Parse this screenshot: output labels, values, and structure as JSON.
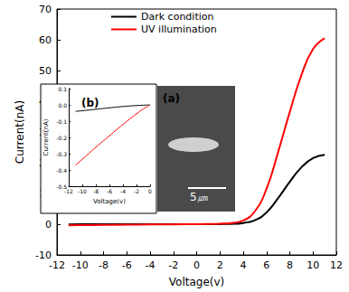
{
  "chart_data": [
    {
      "type": "line",
      "xlabel": "Voltage(v)",
      "ylabel": "Current(nA)",
      "x": [
        -11,
        -10,
        -8,
        -6,
        -4,
        -2,
        0,
        1,
        2,
        3,
        4,
        5,
        6,
        7,
        8,
        9,
        10,
        11
      ],
      "series": [
        {
          "name": "Dark condition",
          "color": "#000000",
          "values": [
            -0.04,
            -0.035,
            -0.025,
            -0.015,
            -0.008,
            -0.003,
            0,
            0.01,
            0.03,
            0.1,
            0.4,
            1.3,
            3.8,
            8.5,
            13.8,
            18.5,
            21.5,
            22.6
          ]
        },
        {
          "name": "UV illumination",
          "color": "#ff0000",
          "values": [
            -0.37,
            -0.33,
            -0.25,
            -0.18,
            -0.11,
            -0.05,
            0,
            0.05,
            0.15,
            0.4,
            1.2,
            4.2,
            11.5,
            23.5,
            36.5,
            48.5,
            57,
            60.5
          ]
        }
      ],
      "xlim": [
        -12,
        12
      ],
      "xticks": [
        -12,
        -10,
        -8,
        -6,
        -4,
        -2,
        0,
        2,
        4,
        6,
        8,
        10,
        12
      ],
      "ylim": [
        -10,
        70
      ],
      "yticks": [
        -10,
        0,
        10,
        20,
        30,
        40,
        50,
        60,
        70
      ],
      "legend": "upper left"
    },
    {
      "type": "line",
      "title": "(b)",
      "xlabel": "Voltage(v)",
      "ylabel": "Current(nA)",
      "x": [
        -11,
        -10,
        -8,
        -6,
        -4,
        -2,
        -1,
        0
      ],
      "series": [
        {
          "color": "#000000",
          "values": [
            -0.04,
            -0.036,
            -0.027,
            -0.018,
            -0.01,
            -0.004,
            -0.002,
            0
          ]
        },
        {
          "color": "#ff0000",
          "values": [
            -0.37,
            -0.335,
            -0.26,
            -0.19,
            -0.12,
            -0.055,
            -0.025,
            0
          ]
        }
      ],
      "xlim": [
        -12,
        0
      ],
      "xticks": [
        -12,
        -10,
        -8,
        -6,
        -4,
        -2,
        0
      ],
      "ylim": [
        -0.5,
        0.1
      ],
      "yticks": [
        {
          "value": 0.1,
          "label": "0.1"
        },
        {
          "value": 0,
          "label": "0.0"
        },
        {
          "value": -0.1,
          "label": "-0.1"
        },
        {
          "value": -0.2,
          "label": "-0.2"
        },
        {
          "value": -0.3,
          "label": "-0.3"
        },
        {
          "value": -0.4,
          "label": "-0.4"
        },
        {
          "value": -0.5,
          "label": "-0.5"
        }
      ]
    }
  ],
  "image_inset": {
    "label": "(a)",
    "scale_bar": "5㎛"
  }
}
